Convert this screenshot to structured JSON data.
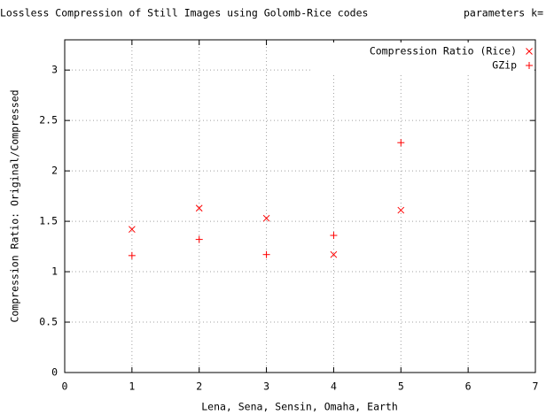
{
  "chart_data": {
    "type": "scatter",
    "title": "Lossless Compression of Still Images using Golomb-Rice codes",
    "subtitle": "parameters k=",
    "x_label": "Lena, Sena, Sensin, Omaha, Earth",
    "y_label": "Compression Ratio: Original/Compressed",
    "xlim": [
      0,
      7
    ],
    "ylim": [
      0,
      3.3
    ],
    "xticks": [
      0,
      1,
      2,
      3,
      4,
      5,
      6,
      7
    ],
    "yticks": [
      0,
      0.5,
      1,
      1.5,
      2,
      2.5,
      3
    ],
    "grid": true,
    "legend": "top-right",
    "series": [
      {
        "name": "Compression Ratio (Rice)",
        "color": "#ff0000",
        "marker": "x",
        "x": [
          1,
          2,
          3,
          4,
          5
        ],
        "values": [
          1.42,
          1.63,
          1.53,
          1.17,
          1.61
        ]
      },
      {
        "name": "GZip",
        "color": "#ff0000",
        "marker": "+",
        "x": [
          1,
          2,
          3,
          4,
          5
        ],
        "values": [
          1.16,
          1.32,
          1.17,
          1.36,
          2.28
        ]
      }
    ]
  }
}
